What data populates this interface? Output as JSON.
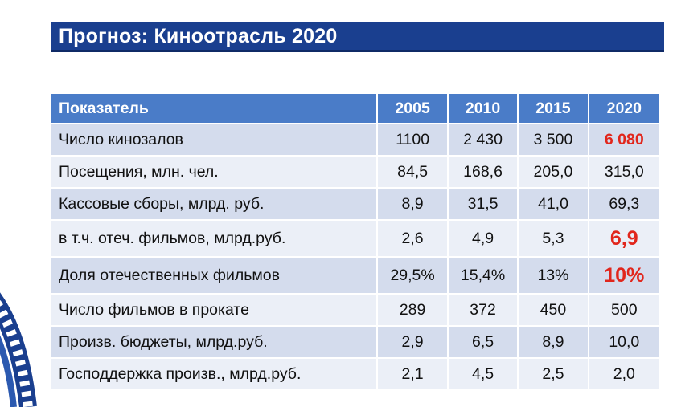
{
  "title": "Прогноз: Киноотрасль 2020",
  "table": {
    "header": {
      "label": "Показатель",
      "years": [
        "2005",
        "2010",
        "2015",
        "2020"
      ]
    },
    "rows": [
      {
        "label": "Число кинозалов",
        "values": [
          "1100",
          "2 430",
          "3 500",
          "6 080"
        ]
      },
      {
        "label": "Посещения, млн. чел.",
        "values": [
          "84,5",
          "168,6",
          "205,0",
          "315,0"
        ]
      },
      {
        "label": "Кассовые сборы, млрд. руб.",
        "values": [
          "8,9",
          "31,5",
          "41,0",
          "69,3"
        ]
      },
      {
        "label": "в т.ч. отеч. фильмов, млрд.руб.",
        "values": [
          "2,6",
          "4,9",
          "5,3",
          "6,9"
        ]
      },
      {
        "label": "Доля отечественных фильмов",
        "values": [
          "29,5%",
          "15,4%",
          "13%",
          "10%"
        ]
      },
      {
        "label": "Число фильмов в прокате",
        "values": [
          "289",
          "372",
          "450",
          "500"
        ]
      },
      {
        "label": "Произв. бюджеты, млрд.руб.",
        "values": [
          "2,9",
          "6,5",
          "8,9",
          "10,0"
        ]
      },
      {
        "label": "Господдержка произв., млрд.руб.",
        "values": [
          "2,1",
          "4,5",
          "2,5",
          "2,0"
        ]
      }
    ]
  },
  "colors": {
    "title_bar": "#1a3f8f",
    "header_bg": "#4a7cc8",
    "row_dark": "#d4dced",
    "row_light": "#ebeff7",
    "highlight": "#e1261c"
  },
  "decorations": {
    "left_edge_graphic": "film-reel-icon"
  }
}
